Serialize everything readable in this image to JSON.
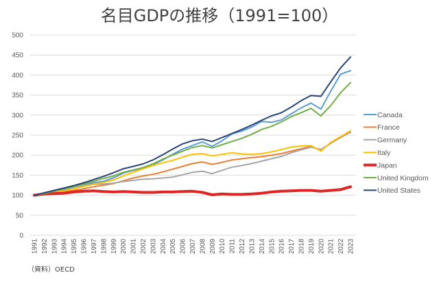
{
  "chart_data": {
    "type": "line",
    "title": "名目GDPの推移（1991=100）",
    "source": "（資料）OECD",
    "xlabel": "",
    "ylabel": "",
    "ylim": [
      0,
      500
    ],
    "yticks": [
      0,
      50,
      100,
      150,
      200,
      250,
      300,
      350,
      400,
      450,
      500
    ],
    "grid": true,
    "legend": "right",
    "x": [
      1991,
      1992,
      1993,
      1994,
      1995,
      1996,
      1997,
      1998,
      1999,
      2000,
      2001,
      2002,
      2003,
      2004,
      2005,
      2006,
      2007,
      2008,
      2009,
      2010,
      2011,
      2012,
      2013,
      2014,
      2015,
      2016,
      2017,
      2018,
      2019,
      2020,
      2021,
      2022,
      2023
    ],
    "series": [
      {
        "name": "Canada",
        "color": "#5B9BD5",
        "width": 2,
        "values": [
          100,
          104,
          109,
          114,
          120,
          125,
          131,
          135,
          143,
          155,
          162,
          168,
          176,
          188,
          202,
          215,
          224,
          233,
          222,
          236,
          253,
          260,
          270,
          284,
          282,
          288,
          303,
          318,
          330,
          315,
          360,
          402,
          411
        ]
      },
      {
        "name": "France",
        "color": "#ED7D31",
        "width": 2,
        "values": [
          100,
          102,
          104,
          108,
          112,
          116,
          121,
          125,
          129,
          136,
          143,
          148,
          152,
          158,
          165,
          172,
          179,
          183,
          177,
          182,
          188,
          191,
          194,
          196,
          200,
          204,
          210,
          216,
          222,
          212,
          230,
          244,
          258
        ]
      },
      {
        "name": "Germany",
        "color": "#A5A5A5",
        "width": 2,
        "values": [
          100,
          105,
          109,
          115,
          121,
          124,
          127,
          128,
          130,
          134,
          137,
          140,
          141,
          143,
          145,
          151,
          157,
          160,
          154,
          162,
          170,
          174,
          179,
          185,
          191,
          197,
          206,
          213,
          220,
          214,
          230,
          245,
          257
        ]
      },
      {
        "name": "Italy",
        "color": "#FFC000",
        "width": 2,
        "values": [
          100,
          104,
          107,
          111,
          116,
          122,
          127,
          132,
          138,
          148,
          157,
          166,
          174,
          181,
          187,
          195,
          202,
          204,
          198,
          202,
          206,
          203,
          202,
          204,
          208,
          214,
          220,
          223,
          224,
          210,
          232,
          246,
          261
        ]
      },
      {
        "name": "Japan",
        "color": "#E02424",
        "width": 4,
        "values": [
          100,
          103,
          104,
          105,
          108,
          110,
          111,
          109,
          108,
          109,
          108,
          107,
          107,
          108,
          108,
          109,
          110,
          107,
          101,
          103,
          102,
          102,
          103,
          105,
          108,
          110,
          111,
          112,
          112,
          110,
          112,
          114,
          121
        ]
      },
      {
        "name": "United Kingdom",
        "color": "#70AD47",
        "width": 2,
        "values": [
          100,
          104,
          110,
          116,
          122,
          128,
          135,
          142,
          148,
          157,
          163,
          169,
          178,
          190,
          200,
          210,
          219,
          224,
          218,
          226,
          234,
          242,
          252,
          264,
          272,
          283,
          296,
          306,
          317,
          298,
          324,
          356,
          381
        ]
      },
      {
        "name": "United States",
        "color": "#264478",
        "width": 2,
        "values": [
          100,
          106,
          112,
          118,
          124,
          131,
          139,
          147,
          156,
          166,
          172,
          178,
          188,
          201,
          215,
          228,
          236,
          240,
          234,
          244,
          254,
          264,
          275,
          287,
          298,
          306,
          320,
          336,
          349,
          347,
          383,
          418,
          445
        ]
      }
    ]
  }
}
